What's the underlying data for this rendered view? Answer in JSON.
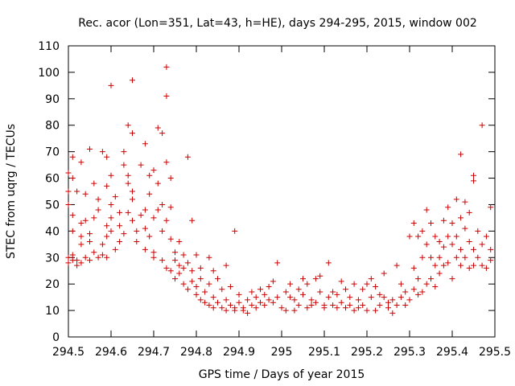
{
  "chart_data": {
    "type": "scatter",
    "title": "Rec. acor (Lon=351, Lat=43, h=HE), days 294-295, 2015, window 002",
    "xlabel": "GPS time / Days of year 2015",
    "ylabel": "STEC from uqrg / TECUs",
    "xlim": [
      294.5,
      295.5
    ],
    "ylim": [
      0,
      110
    ],
    "xticks": [
      294.5,
      294.6,
      294.7,
      294.8,
      294.9,
      295,
      295.1,
      295.2,
      295.3,
      295.4,
      295.5
    ],
    "xtick_labels": [
      "294.5",
      "294.6",
      "294.7",
      "294.8",
      "294.9",
      "295",
      "295.1",
      "295.2",
      "295.3",
      "295.4",
      "295.5"
    ],
    "yticks": [
      0,
      10,
      20,
      30,
      40,
      50,
      60,
      70,
      80,
      90,
      100,
      110
    ],
    "ytick_labels": [
      "0",
      "10",
      "20",
      "30",
      "40",
      "50",
      "60",
      "70",
      "80",
      "90",
      "100",
      "110"
    ],
    "grid": false,
    "marker": "+",
    "color": "#cc0000",
    "series": [
      {
        "points": [
          [
            294.5,
            30
          ],
          [
            294.5,
            28
          ],
          [
            294.5,
            50
          ],
          [
            294.5,
            55
          ],
          [
            294.5,
            62
          ],
          [
            294.51,
            68
          ],
          [
            294.51,
            60
          ],
          [
            294.51,
            46
          ],
          [
            294.51,
            40
          ],
          [
            294.51,
            31
          ],
          [
            294.51,
            29
          ],
          [
            294.52,
            27
          ],
          [
            294.52,
            29
          ],
          [
            294.52,
            55
          ],
          [
            294.53,
            66
          ],
          [
            294.53,
            43
          ],
          [
            294.53,
            38
          ],
          [
            294.53,
            35
          ],
          [
            294.53,
            28
          ],
          [
            294.54,
            30
          ],
          [
            294.54,
            44
          ],
          [
            294.54,
            54
          ],
          [
            294.55,
            71
          ],
          [
            294.55,
            39
          ],
          [
            294.55,
            36
          ],
          [
            294.55,
            29
          ],
          [
            294.56,
            45
          ],
          [
            294.56,
            32
          ],
          [
            294.56,
            58
          ],
          [
            294.57,
            30
          ],
          [
            294.57,
            48
          ],
          [
            294.57,
            52
          ],
          [
            294.58,
            70
          ],
          [
            294.58,
            35
          ],
          [
            294.58,
            31
          ],
          [
            294.59,
            68
          ],
          [
            294.59,
            57
          ],
          [
            294.59,
            42
          ],
          [
            294.59,
            38
          ],
          [
            294.59,
            30
          ],
          [
            294.6,
            95
          ],
          [
            294.6,
            61
          ],
          [
            294.6,
            50
          ],
          [
            294.6,
            45
          ],
          [
            294.6,
            40
          ],
          [
            294.61,
            33
          ],
          [
            294.61,
            53
          ],
          [
            294.62,
            42
          ],
          [
            294.62,
            47
          ],
          [
            294.62,
            36
          ],
          [
            294.63,
            70
          ],
          [
            294.63,
            65
          ],
          [
            294.63,
            39
          ],
          [
            294.64,
            80
          ],
          [
            294.64,
            61
          ],
          [
            294.64,
            58
          ],
          [
            294.64,
            47
          ],
          [
            294.65,
            97
          ],
          [
            294.65,
            77
          ],
          [
            294.65,
            55
          ],
          [
            294.65,
            52
          ],
          [
            294.65,
            44
          ],
          [
            294.66,
            40
          ],
          [
            294.66,
            36
          ],
          [
            294.67,
            65
          ],
          [
            294.67,
            46
          ],
          [
            294.68,
            73
          ],
          [
            294.68,
            48
          ],
          [
            294.68,
            41
          ],
          [
            294.68,
            33
          ],
          [
            294.69,
            61
          ],
          [
            294.69,
            54
          ],
          [
            294.69,
            38
          ],
          [
            294.7,
            63
          ],
          [
            294.7,
            45
          ],
          [
            294.7,
            32
          ],
          [
            294.7,
            30
          ],
          [
            294.71,
            79
          ],
          [
            294.71,
            58
          ],
          [
            294.71,
            48
          ],
          [
            294.72,
            77
          ],
          [
            294.72,
            50
          ],
          [
            294.72,
            40
          ],
          [
            294.72,
            29
          ],
          [
            294.73,
            102
          ],
          [
            294.73,
            91
          ],
          [
            294.73,
            66
          ],
          [
            294.73,
            44
          ],
          [
            294.73,
            26
          ],
          [
            294.74,
            60
          ],
          [
            294.74,
            49
          ],
          [
            294.74,
            37
          ],
          [
            294.74,
            25
          ],
          [
            294.75,
            32
          ],
          [
            294.75,
            29
          ],
          [
            294.75,
            22
          ],
          [
            294.76,
            36
          ],
          [
            294.76,
            27
          ],
          [
            294.76,
            24
          ],
          [
            294.77,
            31
          ],
          [
            294.77,
            26
          ],
          [
            294.77,
            20
          ],
          [
            294.78,
            68
          ],
          [
            294.78,
            28
          ],
          [
            294.78,
            18
          ],
          [
            294.79,
            44
          ],
          [
            294.79,
            25
          ],
          [
            294.79,
            21
          ],
          [
            294.8,
            31
          ],
          [
            294.8,
            19
          ],
          [
            294.8,
            16
          ],
          [
            294.81,
            26
          ],
          [
            294.81,
            22
          ],
          [
            294.81,
            14
          ],
          [
            294.82,
            17
          ],
          [
            294.82,
            13
          ],
          [
            294.83,
            30
          ],
          [
            294.83,
            20
          ],
          [
            294.83,
            12
          ],
          [
            294.84,
            25
          ],
          [
            294.84,
            15
          ],
          [
            294.84,
            11
          ],
          [
            294.85,
            22
          ],
          [
            294.85,
            13
          ],
          [
            294.86,
            18
          ],
          [
            294.86,
            11
          ],
          [
            294.87,
            27
          ],
          [
            294.87,
            14
          ],
          [
            294.87,
            10
          ],
          [
            294.88,
            19
          ],
          [
            294.88,
            12
          ],
          [
            294.89,
            40
          ],
          [
            294.89,
            11
          ],
          [
            294.89,
            10
          ],
          [
            294.9,
            16
          ],
          [
            294.9,
            13
          ],
          [
            294.91,
            11
          ],
          [
            294.91,
            10
          ],
          [
            294.92,
            14
          ],
          [
            294.92,
            9
          ],
          [
            294.93,
            12
          ],
          [
            294.93,
            17
          ],
          [
            294.94,
            15
          ],
          [
            294.94,
            11
          ],
          [
            294.95,
            18
          ],
          [
            294.95,
            13
          ],
          [
            294.96,
            16
          ],
          [
            294.96,
            12
          ],
          [
            294.97,
            19
          ],
          [
            294.97,
            14
          ],
          [
            294.98,
            21
          ],
          [
            294.98,
            13
          ],
          [
            294.99,
            28
          ],
          [
            294.99,
            15
          ],
          [
            295.0,
            11
          ],
          [
            295.01,
            17
          ],
          [
            295.01,
            10
          ],
          [
            295.02,
            20
          ],
          [
            295.02,
            15
          ],
          [
            295.03,
            14
          ],
          [
            295.03,
            10
          ],
          [
            295.04,
            18
          ],
          [
            295.04,
            12
          ],
          [
            295.05,
            22
          ],
          [
            295.05,
            16
          ],
          [
            295.06,
            20
          ],
          [
            295.06,
            11
          ],
          [
            295.07,
            14
          ],
          [
            295.07,
            12
          ],
          [
            295.08,
            22
          ],
          [
            295.08,
            13
          ],
          [
            295.09,
            23
          ],
          [
            295.09,
            17
          ],
          [
            295.1,
            12
          ],
          [
            295.1,
            11
          ],
          [
            295.11,
            28
          ],
          [
            295.11,
            15
          ],
          [
            295.12,
            17
          ],
          [
            295.12,
            12
          ],
          [
            295.13,
            16
          ],
          [
            295.13,
            11
          ],
          [
            295.14,
            21
          ],
          [
            295.14,
            13
          ],
          [
            295.15,
            18
          ],
          [
            295.15,
            11
          ],
          [
            295.16,
            15
          ],
          [
            295.16,
            12
          ],
          [
            295.17,
            20
          ],
          [
            295.17,
            10
          ],
          [
            295.18,
            14
          ],
          [
            295.18,
            11
          ],
          [
            295.19,
            18
          ],
          [
            295.19,
            12
          ],
          [
            295.2,
            20
          ],
          [
            295.2,
            10
          ],
          [
            295.21,
            22
          ],
          [
            295.21,
            15
          ],
          [
            295.22,
            19
          ],
          [
            295.22,
            10
          ],
          [
            295.23,
            16
          ],
          [
            295.23,
            12
          ],
          [
            295.24,
            24
          ],
          [
            295.24,
            15
          ],
          [
            295.25,
            13
          ],
          [
            295.25,
            11
          ],
          [
            295.26,
            14
          ],
          [
            295.26,
            9
          ],
          [
            295.27,
            27
          ],
          [
            295.27,
            12
          ],
          [
            295.28,
            20
          ],
          [
            295.28,
            15
          ],
          [
            295.29,
            17
          ],
          [
            295.29,
            12
          ],
          [
            295.3,
            38
          ],
          [
            295.3,
            14
          ],
          [
            295.31,
            43
          ],
          [
            295.31,
            26
          ],
          [
            295.31,
            18
          ],
          [
            295.32,
            38
          ],
          [
            295.32,
            22
          ],
          [
            295.32,
            16
          ],
          [
            295.33,
            40
          ],
          [
            295.33,
            30
          ],
          [
            295.33,
            17
          ],
          [
            295.34,
            35
          ],
          [
            295.34,
            20
          ],
          [
            295.34,
            48
          ],
          [
            295.35,
            43
          ],
          [
            295.35,
            30
          ],
          [
            295.35,
            22
          ],
          [
            295.36,
            38
          ],
          [
            295.36,
            27
          ],
          [
            295.36,
            19
          ],
          [
            295.37,
            36
          ],
          [
            295.37,
            30
          ],
          [
            295.37,
            24
          ],
          [
            295.38,
            44
          ],
          [
            295.38,
            34
          ],
          [
            295.38,
            27
          ],
          [
            295.39,
            49
          ],
          [
            295.39,
            38
          ],
          [
            295.39,
            28
          ],
          [
            295.4,
            43
          ],
          [
            295.4,
            35
          ],
          [
            295.4,
            22
          ],
          [
            295.41,
            52
          ],
          [
            295.41,
            38
          ],
          [
            295.41,
            30
          ],
          [
            295.42,
            69
          ],
          [
            295.42,
            45
          ],
          [
            295.42,
            33
          ],
          [
            295.42,
            27
          ],
          [
            295.43,
            51
          ],
          [
            295.43,
            41
          ],
          [
            295.43,
            30
          ],
          [
            295.44,
            47
          ],
          [
            295.44,
            36
          ],
          [
            295.44,
            26
          ],
          [
            295.45,
            61
          ],
          [
            295.45,
            59
          ],
          [
            295.45,
            33
          ],
          [
            295.45,
            27
          ],
          [
            295.46,
            40
          ],
          [
            295.46,
            30
          ],
          [
            295.47,
            80
          ],
          [
            295.47,
            35
          ],
          [
            295.47,
            27
          ],
          [
            295.48,
            38
          ],
          [
            295.48,
            26
          ],
          [
            295.49,
            49
          ],
          [
            295.49,
            33
          ],
          [
            295.49,
            29
          ]
        ]
      }
    ]
  }
}
